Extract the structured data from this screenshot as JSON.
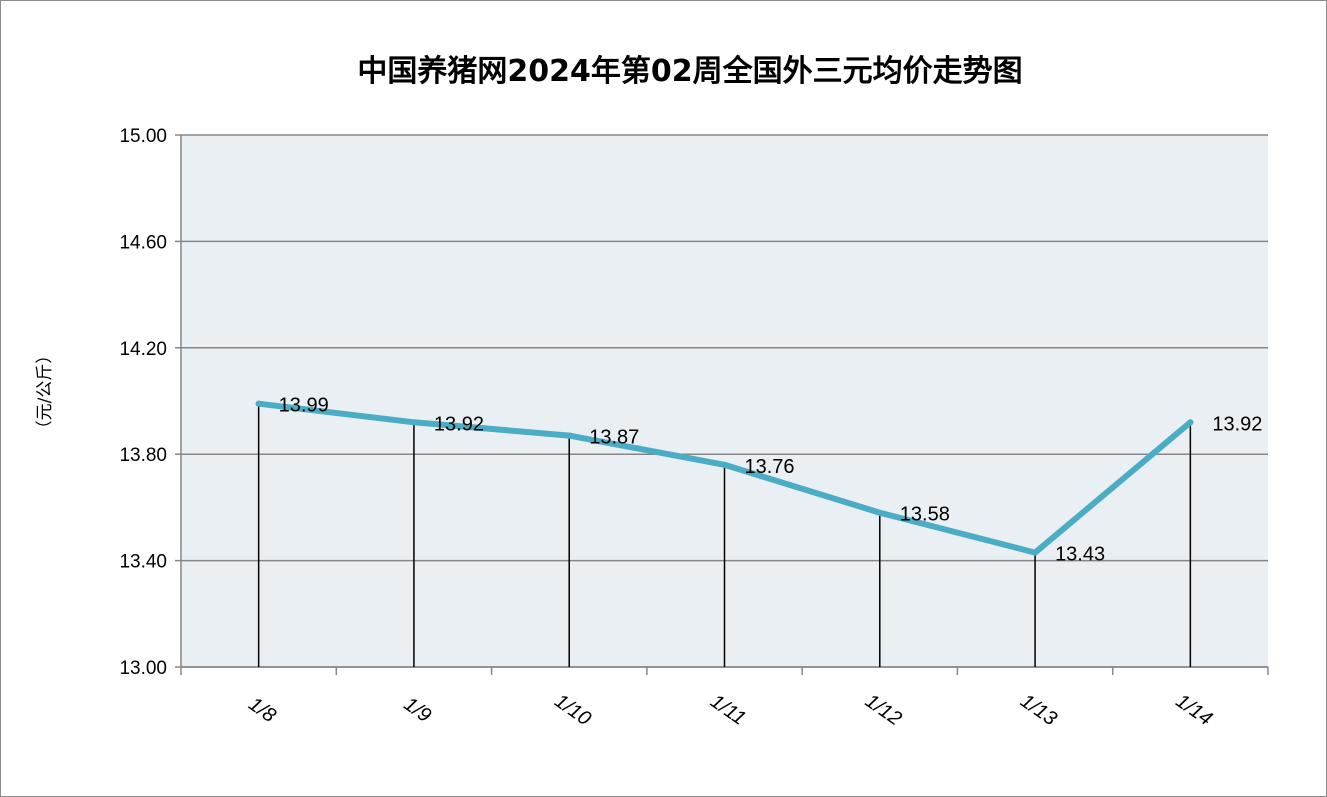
{
  "chart_data": {
    "type": "line",
    "title": "中国养猪网2024年第02周全国外三元均价走势图",
    "ylabel": "（元/公斤）",
    "xlabel": "",
    "categories": [
      "1/8",
      "1/9",
      "1/10",
      "1/11",
      "1/12",
      "1/13",
      "1/14"
    ],
    "series": [
      {
        "values": [
          13.99,
          13.92,
          13.87,
          13.76,
          13.58,
          13.43,
          13.92
        ]
      }
    ],
    "data_labels": [
      "13.99",
      "13.92",
      "13.87",
      "13.76",
      "13.58",
      "13.43",
      "13.92"
    ],
    "y_ticks": [
      "15.00",
      "14.60",
      "14.20",
      "13.80",
      "13.40",
      "13.00"
    ],
    "ylim": [
      13.0,
      15.0
    ],
    "grid": true,
    "drop_lines": true,
    "colors": {
      "line": "#4bacc6",
      "plot_bg": "#e9eff3",
      "grid": "#868686",
      "axis": "#868686",
      "drop_line": "#000000"
    }
  }
}
